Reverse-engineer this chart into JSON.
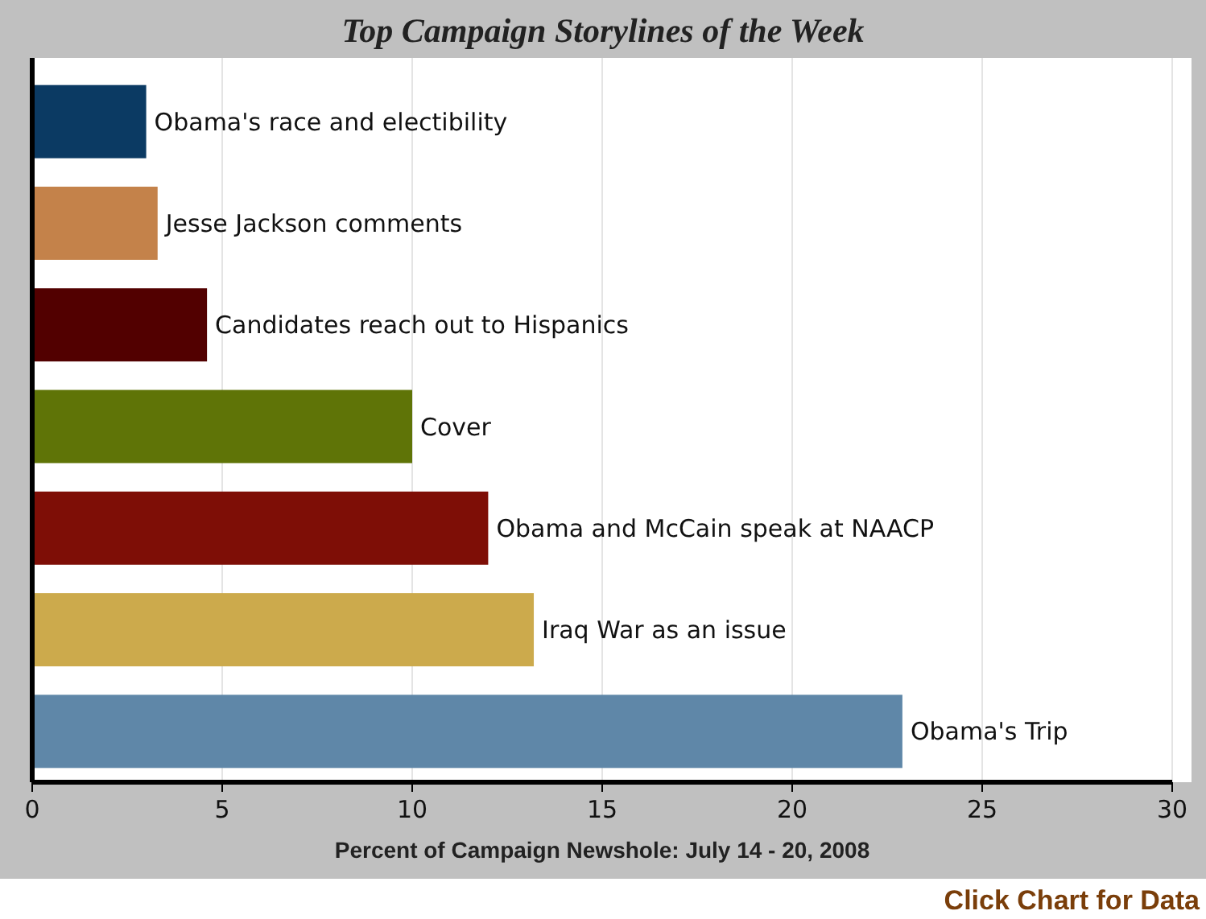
{
  "chart_data": {
    "type": "bar",
    "orientation": "horizontal",
    "title": "Top Campaign Storylines of the Week",
    "xlabel": "Percent of Campaign Newshole: July 14 - 20, 2008",
    "categories": [
      "Obama's race and electibility",
      "Jesse Jackson comments",
      "Candidates reach out to Hispanics",
      "Cover",
      "Obama and McCain speak at NAACP",
      "Iraq War as an issue",
      "Obama's Trip"
    ],
    "values": [
      3.0,
      3.3,
      4.6,
      10.0,
      12.0,
      13.2,
      22.9
    ],
    "colors": [
      "#0b3a63",
      "#c4824a",
      "#520000",
      "#5f7407",
      "#7e0e06",
      "#ccaa4c",
      "#5f87a8"
    ],
    "xlim": [
      0,
      30
    ],
    "xticks": [
      0,
      5,
      10,
      15,
      20,
      25,
      30
    ],
    "grid": "x",
    "annotations": [
      "Click Chart for Data"
    ]
  }
}
